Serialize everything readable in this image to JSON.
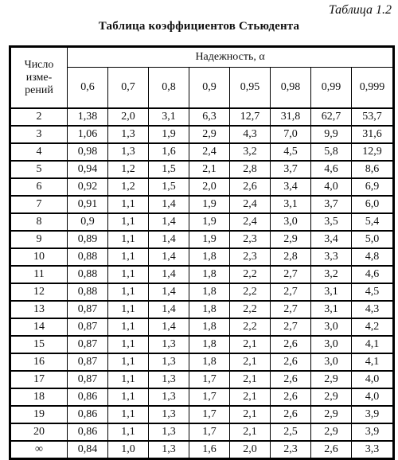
{
  "caption": "Таблица 1.2",
  "title": "Таблица коэффициентов Стьюдента",
  "table": {
    "n_header_lines": [
      "Число",
      "изме-",
      "рений"
    ],
    "reliability_header": "Надежность, α",
    "alphas": [
      "0,6",
      "0,7",
      "0,8",
      "0,9",
      "0,95",
      "0,98",
      "0,99",
      "0,999"
    ],
    "rows": [
      {
        "n": "2",
        "values": [
          "1,38",
          "2,0",
          "3,1",
          "6,3",
          "12,7",
          "31,8",
          "62,7",
          "53,7"
        ]
      },
      {
        "n": "3",
        "values": [
          "1,06",
          "1,3",
          "1,9",
          "2,9",
          "4,3",
          "7,0",
          "9,9",
          "31,6"
        ]
      },
      {
        "n": "4",
        "values": [
          "0,98",
          "1,3",
          "1,6",
          "2,4",
          "3,2",
          "4,5",
          "5,8",
          "12,9"
        ]
      },
      {
        "n": "5",
        "values": [
          "0,94",
          "1,2",
          "1,5",
          "2,1",
          "2,8",
          "3,7",
          "4,6",
          "8,6"
        ]
      },
      {
        "n": "6",
        "values": [
          "0,92",
          "1,2",
          "1,5",
          "2,0",
          "2,6",
          "3,4",
          "4,0",
          "6,9"
        ]
      },
      {
        "n": "7",
        "values": [
          "0,91",
          "1,1",
          "1,4",
          "1,9",
          "2,4",
          "3,1",
          "3,7",
          "6,0"
        ]
      },
      {
        "n": "8",
        "values": [
          "0,9",
          "1,1",
          "1,4",
          "1,9",
          "2,4",
          "3,0",
          "3,5",
          "5,4"
        ]
      },
      {
        "n": "9",
        "values": [
          "0,89",
          "1,1",
          "1,4",
          "1,9",
          "2,3",
          "2,9",
          "3,4",
          "5,0"
        ]
      },
      {
        "n": "10",
        "values": [
          "0,88",
          "1,1",
          "1,4",
          "1,8",
          "2,3",
          "2,8",
          "3,3",
          "4,8"
        ]
      },
      {
        "n": "11",
        "values": [
          "0,88",
          "1,1",
          "1,4",
          "1,8",
          "2,2",
          "2,7",
          "3,2",
          "4,6"
        ]
      },
      {
        "n": "12",
        "values": [
          "0,88",
          "1,1",
          "1,4",
          "1,8",
          "2,2",
          "2,7",
          "3,1",
          "4,5"
        ]
      },
      {
        "n": "13",
        "values": [
          "0,87",
          "1,1",
          "1,4",
          "1,8",
          "2,2",
          "2,7",
          "3,1",
          "4,3"
        ]
      },
      {
        "n": "14",
        "values": [
          "0,87",
          "1,1",
          "1,4",
          "1,8",
          "2,2",
          "2,7",
          "3,0",
          "4,2"
        ]
      },
      {
        "n": "15",
        "values": [
          "0,87",
          "1,1",
          "1,3",
          "1,8",
          "2,1",
          "2,6",
          "3,0",
          "4,1"
        ]
      },
      {
        "n": "16",
        "values": [
          "0,87",
          "1,1",
          "1,3",
          "1,8",
          "2,1",
          "2,6",
          "3,0",
          "4,1"
        ]
      },
      {
        "n": "17",
        "values": [
          "0,87",
          "1,1",
          "1,3",
          "1,7",
          "2,1",
          "2,6",
          "2,9",
          "4,0"
        ]
      },
      {
        "n": "18",
        "values": [
          "0,86",
          "1,1",
          "1,3",
          "1,7",
          "2,1",
          "2,6",
          "2,9",
          "4,0"
        ]
      },
      {
        "n": "19",
        "values": [
          "0,86",
          "1,1",
          "1,3",
          "1,7",
          "2,1",
          "2,6",
          "2,9",
          "3,9"
        ]
      },
      {
        "n": "20",
        "values": [
          "0,86",
          "1,1",
          "1,3",
          "1,7",
          "2,1",
          "2,5",
          "2,9",
          "3,9"
        ]
      },
      {
        "n": "∞",
        "values": [
          "0,84",
          "1,0",
          "1,3",
          "1,6",
          "2,0",
          "2,3",
          "2,6",
          "3,3"
        ]
      }
    ]
  }
}
